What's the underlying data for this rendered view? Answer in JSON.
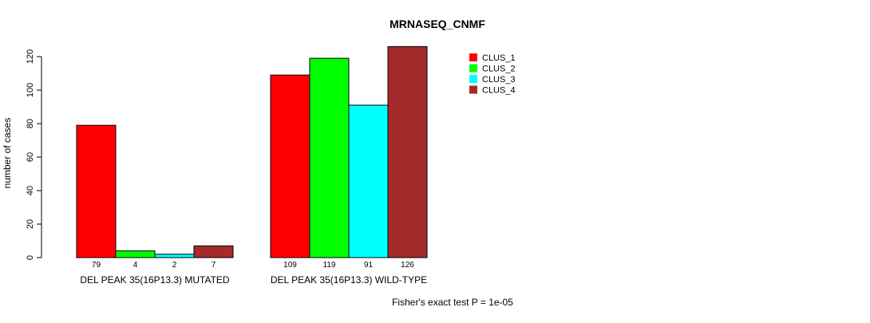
{
  "chart_data": {
    "type": "bar",
    "title": "MRNASEQ_CNMF",
    "ylabel": "number of cases",
    "xlabel": "",
    "ylim": [
      0,
      126
    ],
    "yticks": [
      0,
      20,
      40,
      60,
      80,
      100,
      120
    ],
    "categories": [
      "DEL PEAK 35(16P13.3) MUTATED",
      "DEL PEAK 35(16P13.3) WILD-TYPE"
    ],
    "series": [
      {
        "name": "CLUS_1",
        "color": "#ff0000",
        "values": [
          79,
          109
        ]
      },
      {
        "name": "CLUS_2",
        "color": "#00ff00",
        "values": [
          4,
          119
        ]
      },
      {
        "name": "CLUS_3",
        "color": "#00ffff",
        "values": [
          2,
          91
        ]
      },
      {
        "name": "CLUS_4",
        "color": "#a52a2a",
        "values": [
          7,
          126
        ]
      }
    ],
    "legend_position": "top-right",
    "annotation": "Fisher's exact test P = 1e-05"
  }
}
